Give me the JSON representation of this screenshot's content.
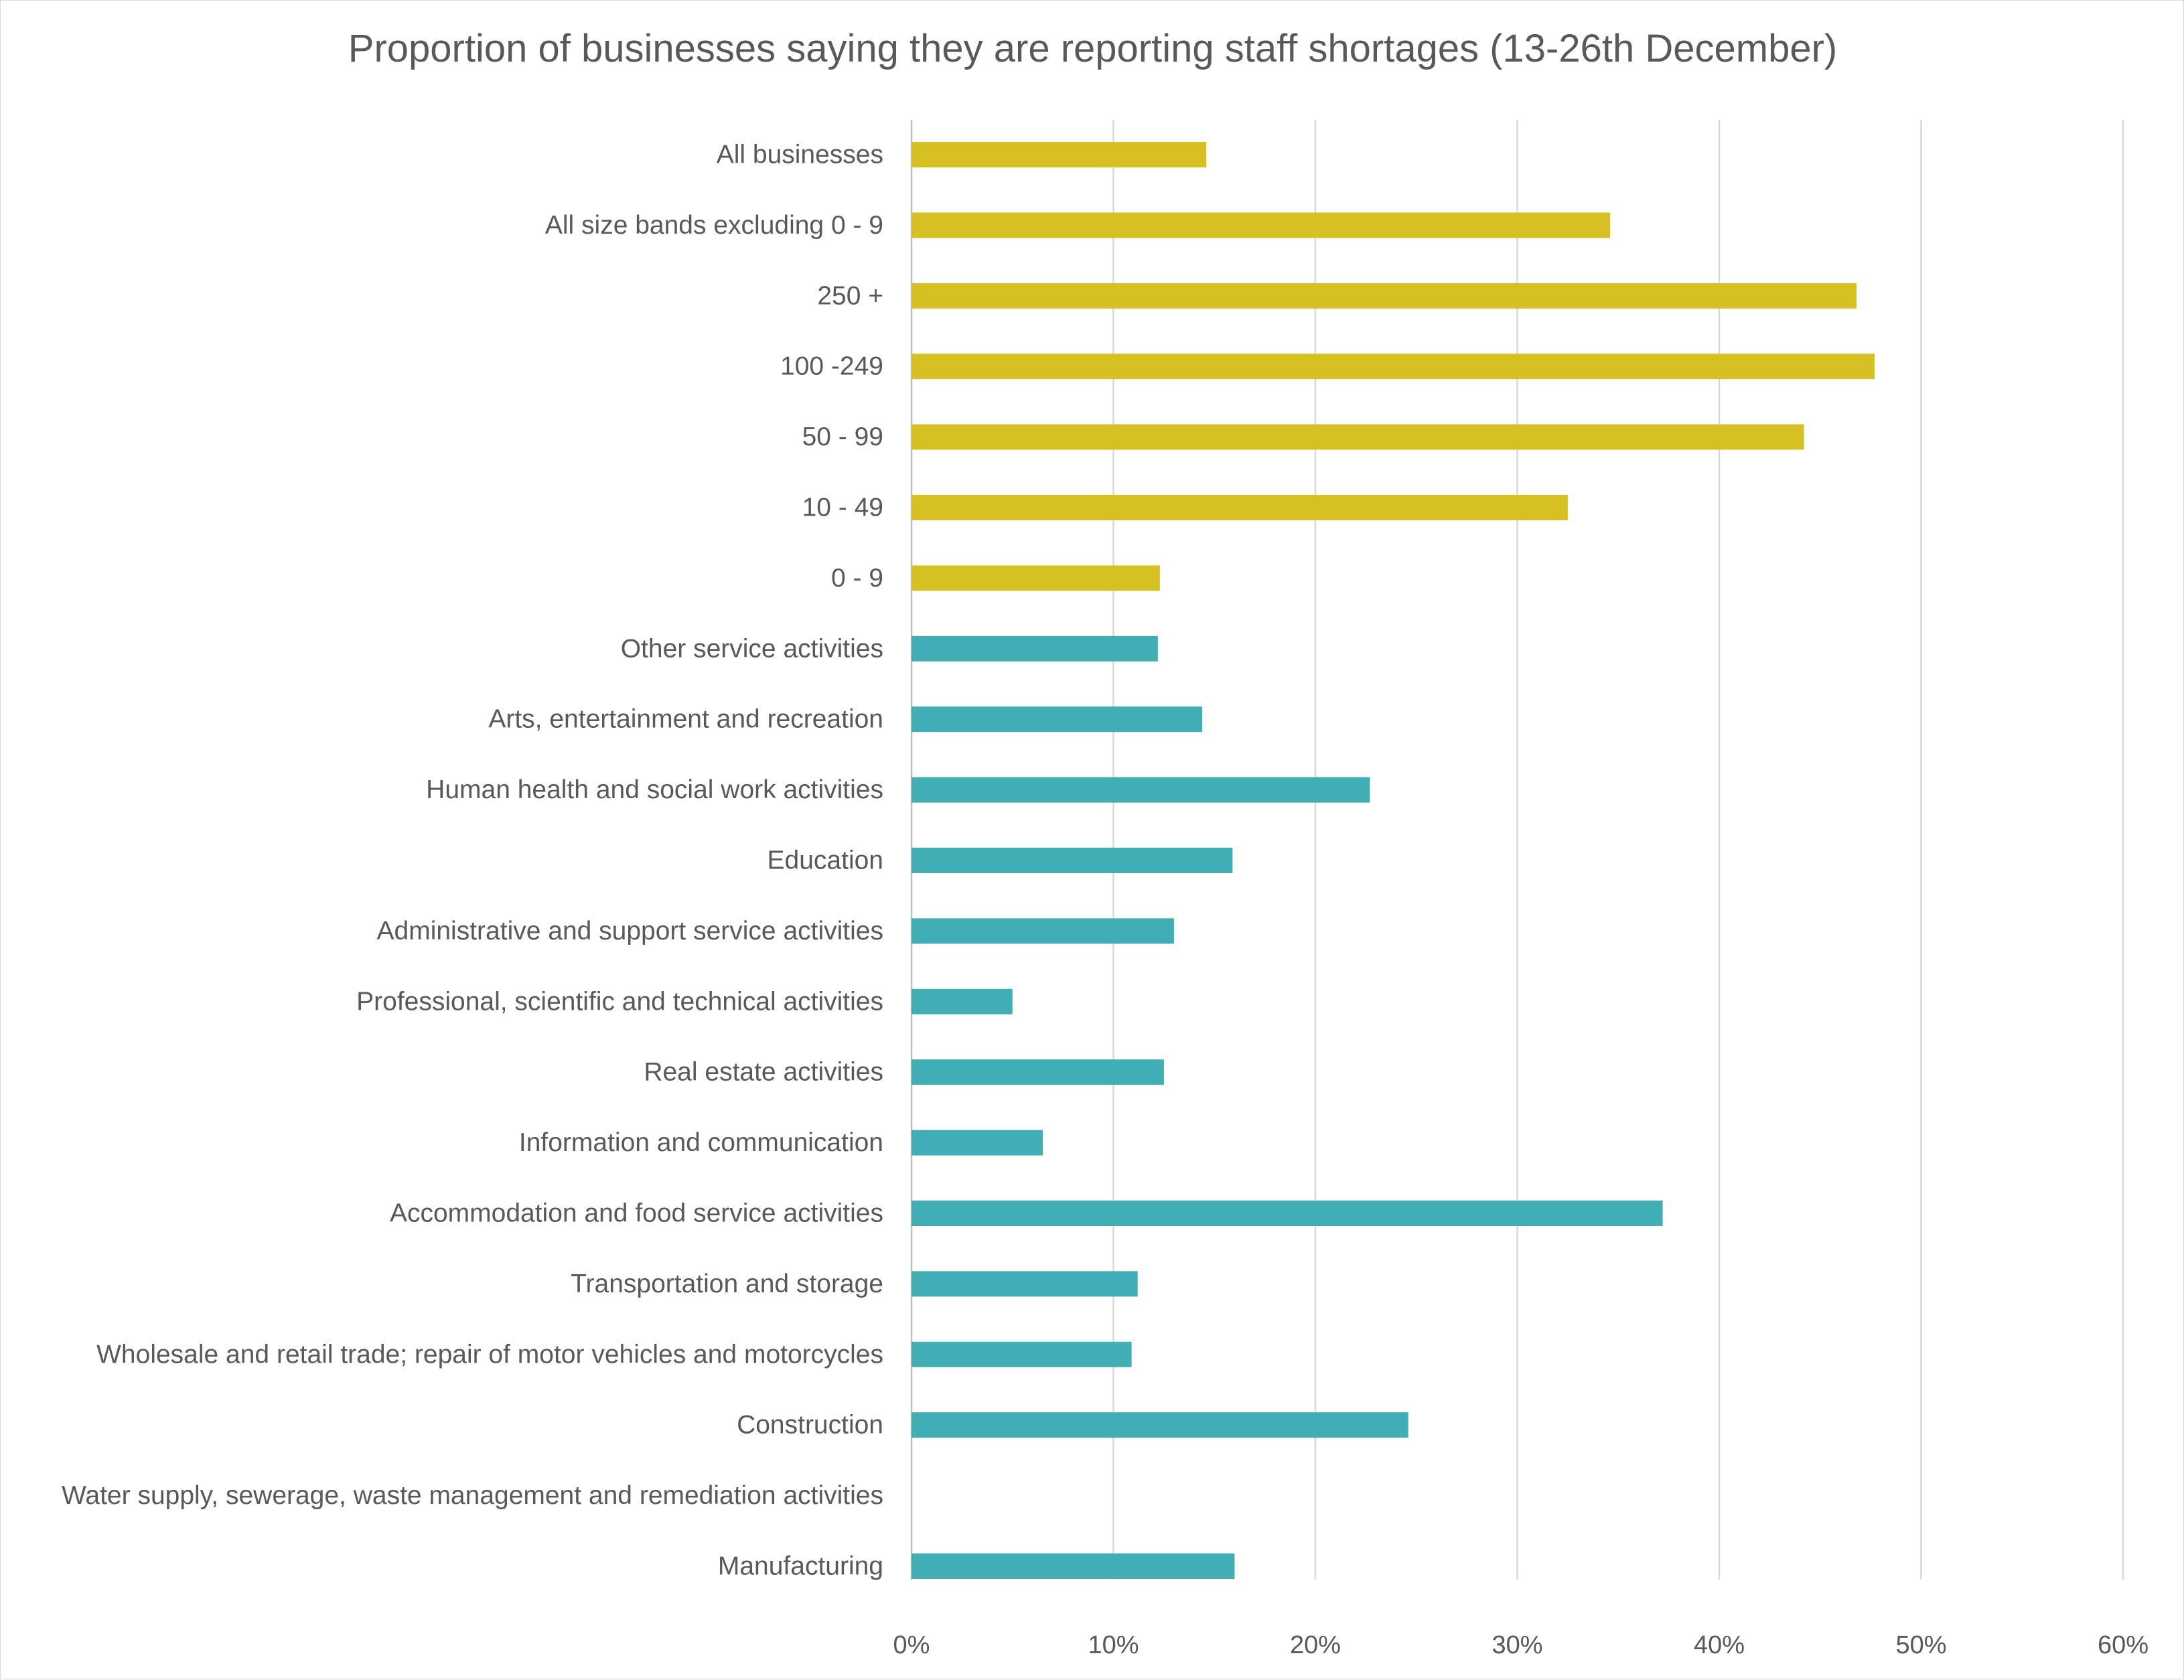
{
  "chart_data": {
    "type": "bar",
    "orientation": "horizontal",
    "title": "Proportion of businesses saying they are reporting staff shortages (13-26th December)",
    "xlabel": "",
    "ylabel": "",
    "xlim": [
      0,
      0.6
    ],
    "x_ticks": [
      0,
      0.1,
      0.2,
      0.3,
      0.4,
      0.5,
      0.6
    ],
    "x_tick_labels": [
      "0%",
      "10%",
      "20%",
      "30%",
      "40%",
      "50%",
      "60%"
    ],
    "grid": "vertical",
    "legend": "none",
    "colors": {
      "size_band": "#D6C023",
      "industry": "#41AEB6"
    },
    "categories": [
      "All businesses",
      "All size bands excluding 0 - 9",
      "250 +",
      "100 -249",
      "50 - 99",
      "10 - 49",
      "0 - 9",
      "Other service activities",
      "Arts, entertainment and recreation",
      "Human health and social work activities",
      "Education",
      "Administrative and support service activities",
      "Professional, scientific and technical activities",
      "Real estate activities",
      "Information and communication",
      "Accommodation and food service activities",
      "Transportation and storage",
      "Wholesale and retail trade; repair of motor vehicles and motorcycles",
      "Construction",
      "Water supply, sewerage, waste management and remediation activities",
      "Manufacturing"
    ],
    "values": [
      0.146,
      0.346,
      0.468,
      0.477,
      0.442,
      0.325,
      0.123,
      0.122,
      0.144,
      0.227,
      0.159,
      0.13,
      0.05,
      0.125,
      0.065,
      0.372,
      0.112,
      0.109,
      0.246,
      null,
      0.16
    ],
    "groups": [
      "size_band",
      "size_band",
      "size_band",
      "size_band",
      "size_band",
      "size_band",
      "size_band",
      "industry",
      "industry",
      "industry",
      "industry",
      "industry",
      "industry",
      "industry",
      "industry",
      "industry",
      "industry",
      "industry",
      "industry",
      "industry",
      "industry"
    ]
  }
}
